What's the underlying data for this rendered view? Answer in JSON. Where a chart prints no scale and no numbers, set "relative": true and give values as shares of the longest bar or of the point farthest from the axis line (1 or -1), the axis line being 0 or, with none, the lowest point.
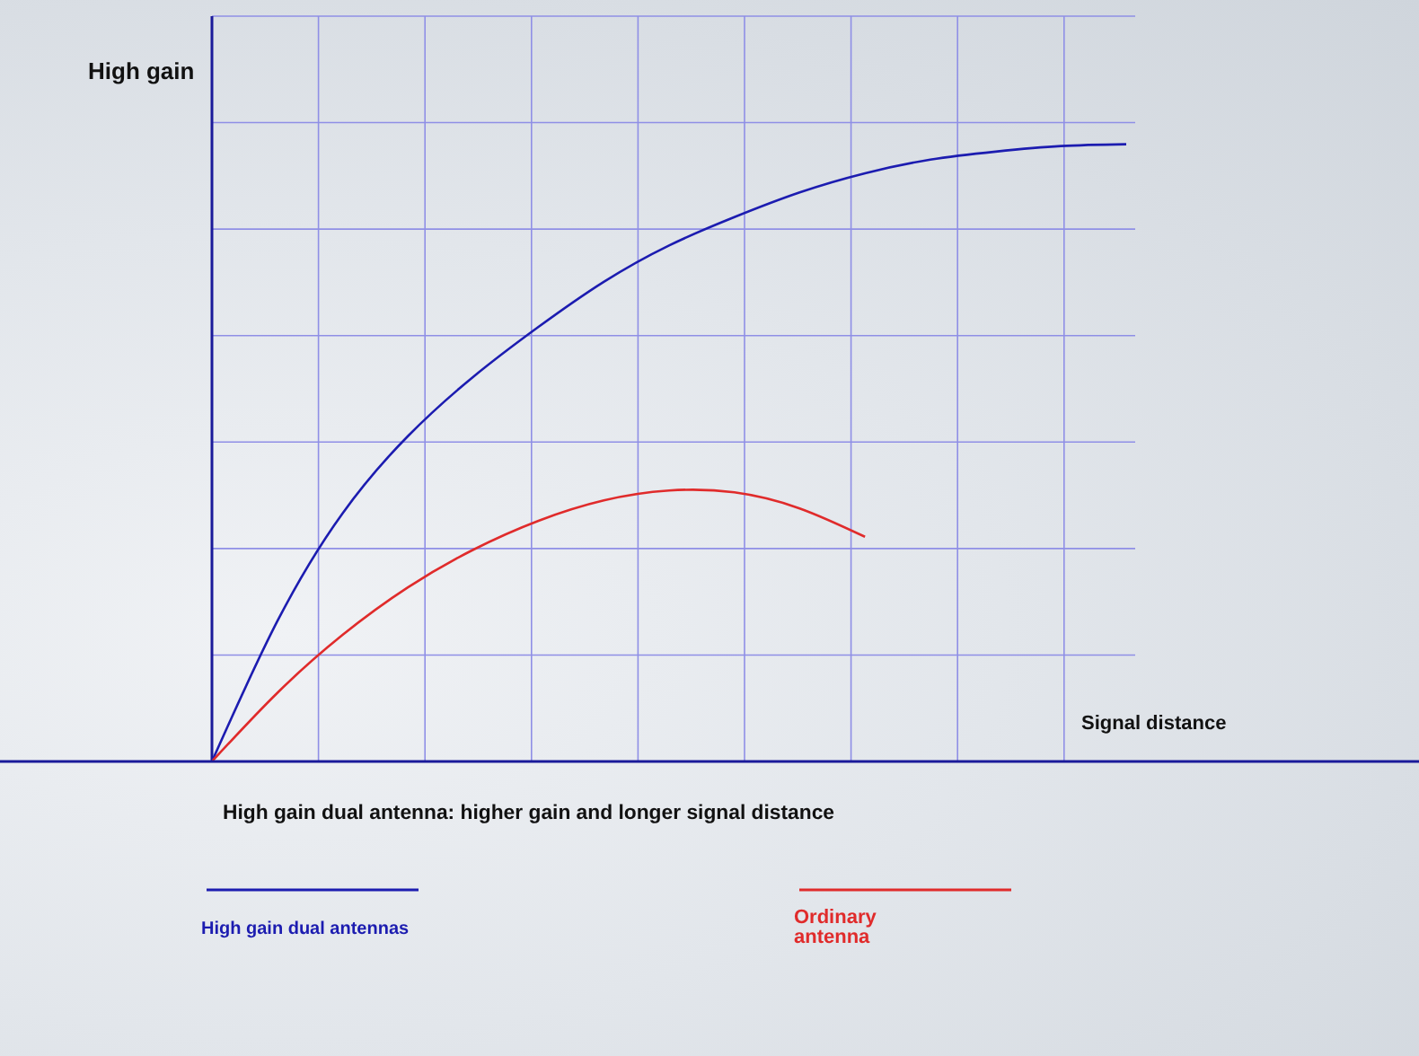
{
  "chart_data": {
    "type": "line",
    "relative": true,
    "ylabel": "High gain",
    "xlabel": "Signal distance",
    "annotations": [
      "High gain dual antenna: higher gain and longer signal distance"
    ],
    "categories": [
      null,
      null,
      null,
      null,
      null,
      null,
      null,
      null,
      null,
      null,
      null,
      null,
      null,
      null,
      null
    ],
    "series": [
      {
        "name": "High gain dual antennas",
        "color": "#1c1cb0",
        "values": [
          0,
          0.227,
          0.402,
          0.527,
          0.623,
          0.704,
          0.777,
          0.836,
          0.882,
          0.922,
          0.953,
          0.975,
          0.988,
          0.997,
          1
        ]
      },
      {
        "name": "Ordinary antenna",
        "color": "#e02b2b",
        "values": [
          0,
          0.111,
          0.205,
          0.282,
          0.343,
          0.39,
          0.423,
          0.439,
          0.436,
          0.41,
          0.364,
          null,
          null,
          null,
          null
        ]
      }
    ],
    "grid": true,
    "legend": "bottom",
    "line_style": "solid"
  }
}
